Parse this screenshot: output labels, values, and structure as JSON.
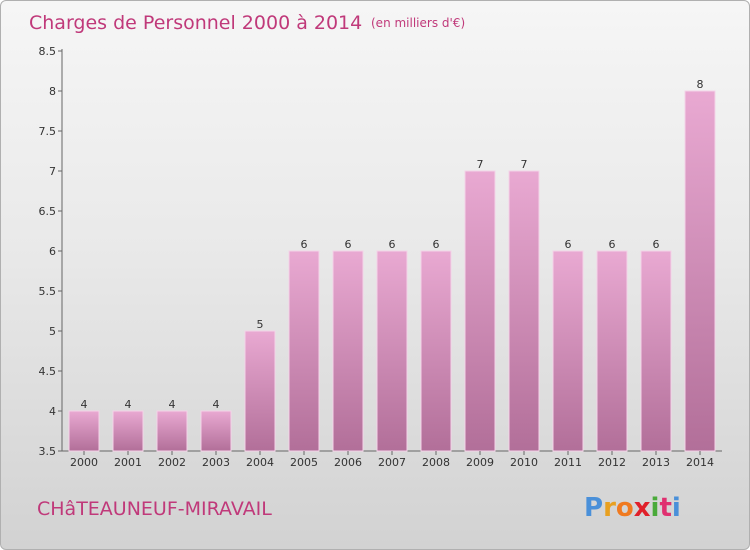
{
  "title": "Charges de Personnel 2000 à 2014",
  "unit_note": "(en milliers d'€)",
  "commune": "CHâTEAUNEUF-MIRAVAIL",
  "brand": {
    "text": "Proxiti",
    "letter_colors": [
      "#4a90d9",
      "#e8a020",
      "#f07a20",
      "#e0202a",
      "#4aaa3a",
      "#e03070",
      "#4a90d9"
    ]
  },
  "colors": {
    "bar_top": "#e9a9d2",
    "bar_bottom": "#b26f99",
    "accent": "#c0397a"
  },
  "chart_data": {
    "type": "bar",
    "categories": [
      "2000",
      "2001",
      "2002",
      "2003",
      "2004",
      "2005",
      "2006",
      "2007",
      "2008",
      "2009",
      "2010",
      "2011",
      "2012",
      "2013",
      "2014"
    ],
    "values": [
      4,
      4,
      4,
      4,
      5,
      6,
      6,
      6,
      6,
      7,
      7,
      6,
      6,
      6,
      8
    ],
    "value_labels": [
      "4",
      "4",
      "4",
      "4",
      "5",
      "6",
      "6",
      "6",
      "6",
      "7",
      "7",
      "6",
      "6",
      "6",
      "8"
    ],
    "ylim": [
      3.5,
      8.5
    ],
    "yticks": [
      3.5,
      4,
      4.5,
      5,
      5.5,
      6,
      6.5,
      7,
      7.5,
      8,
      8.5
    ],
    "grid": false,
    "legend": "none"
  }
}
